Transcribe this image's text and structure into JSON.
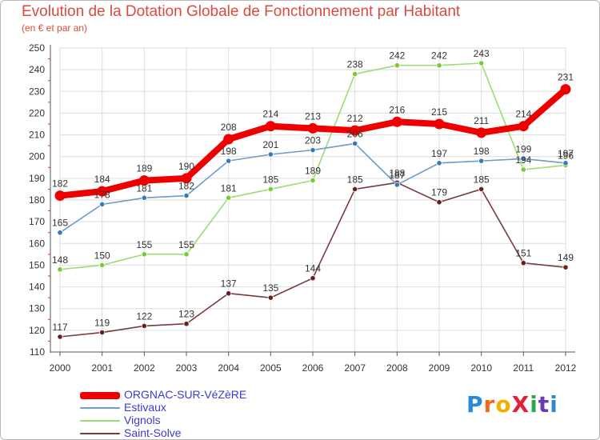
{
  "chart_data": {
    "type": "line",
    "title": "Evolution de la Dotation Globale de Fonctionnement par Habitant",
    "subtitle": "(en € et par an)",
    "xlabel": "",
    "ylabel": "",
    "x": [
      "2000",
      "2001",
      "2002",
      "2003",
      "2004",
      "2005",
      "2006",
      "2007",
      "2008",
      "2009",
      "2010",
      "2011",
      "2012"
    ],
    "ylim": [
      110,
      250
    ],
    "yticks": [
      110,
      120,
      130,
      140,
      150,
      160,
      170,
      180,
      190,
      200,
      210,
      220,
      230,
      240,
      250
    ],
    "grid": true,
    "legend_position": "bottom-left",
    "series": [
      {
        "name": "ORGNAC-SUR-VéZèRE",
        "color": "#ee0000",
        "marker": "#ee0000",
        "values": [
          182,
          184,
          189,
          190,
          208,
          214,
          213,
          212,
          216,
          215,
          211,
          214,
          231
        ],
        "labels": [
          "182",
          "184",
          "189",
          "190",
          "208",
          "214",
          "213",
          "212",
          "216",
          "215",
          "211",
          "214",
          "231"
        ]
      },
      {
        "name": "Estivaux",
        "color": "#6a9ccc",
        "marker": "#3b78b8",
        "values": [
          165,
          178,
          181,
          182,
          198,
          201,
          203,
          206,
          187,
          197,
          198,
          199,
          197
        ],
        "labels": [
          "165",
          "178",
          "181",
          "182",
          "198",
          "201",
          "203",
          "206",
          "187",
          "197",
          "198",
          "199",
          "197"
        ]
      },
      {
        "name": "Vignols",
        "color": "#99dd77",
        "marker": "#77cc33",
        "values": [
          148,
          150,
          155,
          155,
          181,
          185,
          189,
          238,
          242,
          242,
          243,
          194,
          196
        ],
        "labels": [
          "148",
          "150",
          "155",
          "155",
          "181",
          "185",
          "189",
          "238",
          "242",
          "242",
          "243",
          "194",
          "196"
        ]
      },
      {
        "name": "Saint-Solve",
        "color": "#7a3b3b",
        "marker": "#6b1e1e",
        "values": [
          117,
          119,
          122,
          123,
          137,
          135,
          144,
          185,
          188,
          179,
          185,
          151,
          149
        ],
        "labels": [
          "117",
          "119",
          "122",
          "123",
          "137",
          "135",
          "144",
          "185",
          "188",
          "179",
          "185",
          "151",
          "149"
        ]
      }
    ]
  },
  "brand": {
    "text": "ProXiti",
    "letters": [
      "P",
      "r",
      "o",
      "X",
      "i",
      "t",
      "i"
    ],
    "colors": [
      "#2a8ad6",
      "#ee6a1a",
      "#f0b000",
      "#e0203a",
      "#2aa84a",
      "#6a3ab0",
      "#2a8ad6"
    ]
  }
}
